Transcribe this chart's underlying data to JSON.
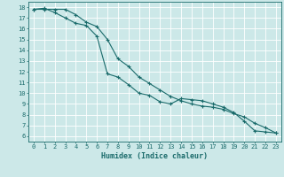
{
  "title": "",
  "xlabel": "Humidex (Indice chaleur)",
  "ylabel": "",
  "bg_color": "#cce8e8",
  "grid_color": "#ffffff",
  "line_color": "#1a6b6b",
  "xlim": [
    -0.5,
    23.5
  ],
  "ylim": [
    5.5,
    18.5
  ],
  "xticks": [
    0,
    1,
    2,
    3,
    4,
    5,
    6,
    7,
    8,
    9,
    10,
    11,
    12,
    13,
    14,
    15,
    16,
    17,
    18,
    19,
    20,
    21,
    22,
    23
  ],
  "yticks": [
    6,
    7,
    8,
    9,
    10,
    11,
    12,
    13,
    14,
    15,
    16,
    17,
    18
  ],
  "line1_x": [
    0,
    1,
    2,
    3,
    4,
    5,
    6,
    7,
    8,
    9,
    10,
    11,
    12,
    13,
    14,
    15,
    16,
    17,
    18,
    19,
    20,
    21,
    22,
    23
  ],
  "line1_y": [
    17.8,
    17.9,
    17.5,
    17.0,
    16.5,
    16.3,
    15.3,
    11.8,
    11.5,
    10.8,
    10.0,
    9.8,
    9.2,
    9.0,
    9.5,
    9.4,
    9.3,
    9.0,
    8.7,
    8.2,
    7.4,
    6.5,
    6.4,
    6.3
  ],
  "line2_x": [
    0,
    1,
    2,
    3,
    4,
    5,
    6,
    7,
    8,
    9,
    10,
    11,
    12,
    13,
    14,
    15,
    16,
    17,
    18,
    19,
    20,
    21,
    22,
    23
  ],
  "line2_y": [
    17.8,
    17.8,
    17.8,
    17.8,
    17.3,
    16.6,
    16.2,
    15.0,
    13.2,
    12.5,
    11.5,
    10.9,
    10.3,
    9.7,
    9.3,
    9.0,
    8.8,
    8.7,
    8.5,
    8.1,
    7.8,
    7.2,
    6.8,
    6.3
  ],
  "tick_fontsize": 5.0,
  "xlabel_fontsize": 6.0
}
